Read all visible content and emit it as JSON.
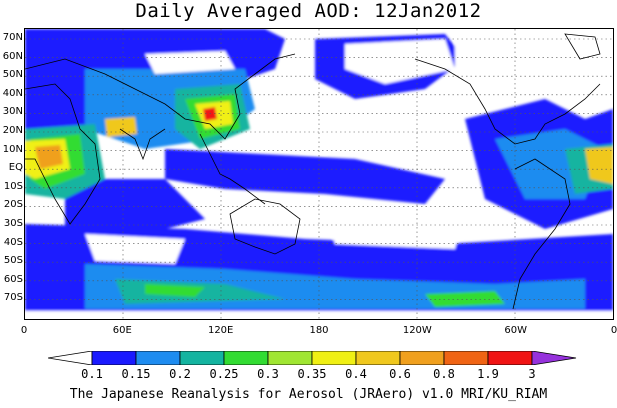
{
  "title": "Daily Averaged AOD: 12Jan2012",
  "footer": "The Japanese Reanalysis for Aerosol (JRAero) v1.0 MRI/KU_RIAM",
  "lat_ticks": [
    "70N",
    "60N",
    "50N",
    "40N",
    "30N",
    "20N",
    "10N",
    "EQ",
    "10S",
    "20S",
    "30S",
    "40S",
    "50S",
    "60S",
    "70S"
  ],
  "lon_ticks": [
    "0",
    "60E",
    "120E",
    "180",
    "120W",
    "60W",
    "0"
  ],
  "colorbar": {
    "levels": [
      "0.1",
      "0.15",
      "0.2",
      "0.25",
      "0.3",
      "0.35",
      "0.4",
      "0.6",
      "0.8",
      "1.9",
      "3"
    ],
    "colors": [
      "#ffffff",
      "#1a1aff",
      "#1e8cf0",
      "#14b4a0",
      "#32dc32",
      "#a0e632",
      "#f0f014",
      "#f0c81e",
      "#f0a01e",
      "#f06414",
      "#f01414",
      "#9632dc"
    ]
  },
  "map_colors": {
    "low": "#1a1aff",
    "mid_low": "#1e8cf0",
    "mid": "#14b4a0",
    "green": "#32dc32",
    "yellow_green": "#a0e632",
    "yellow": "#f0f014",
    "orange": "#f0a01e",
    "red": "#f01414",
    "coast": "#000000"
  }
}
